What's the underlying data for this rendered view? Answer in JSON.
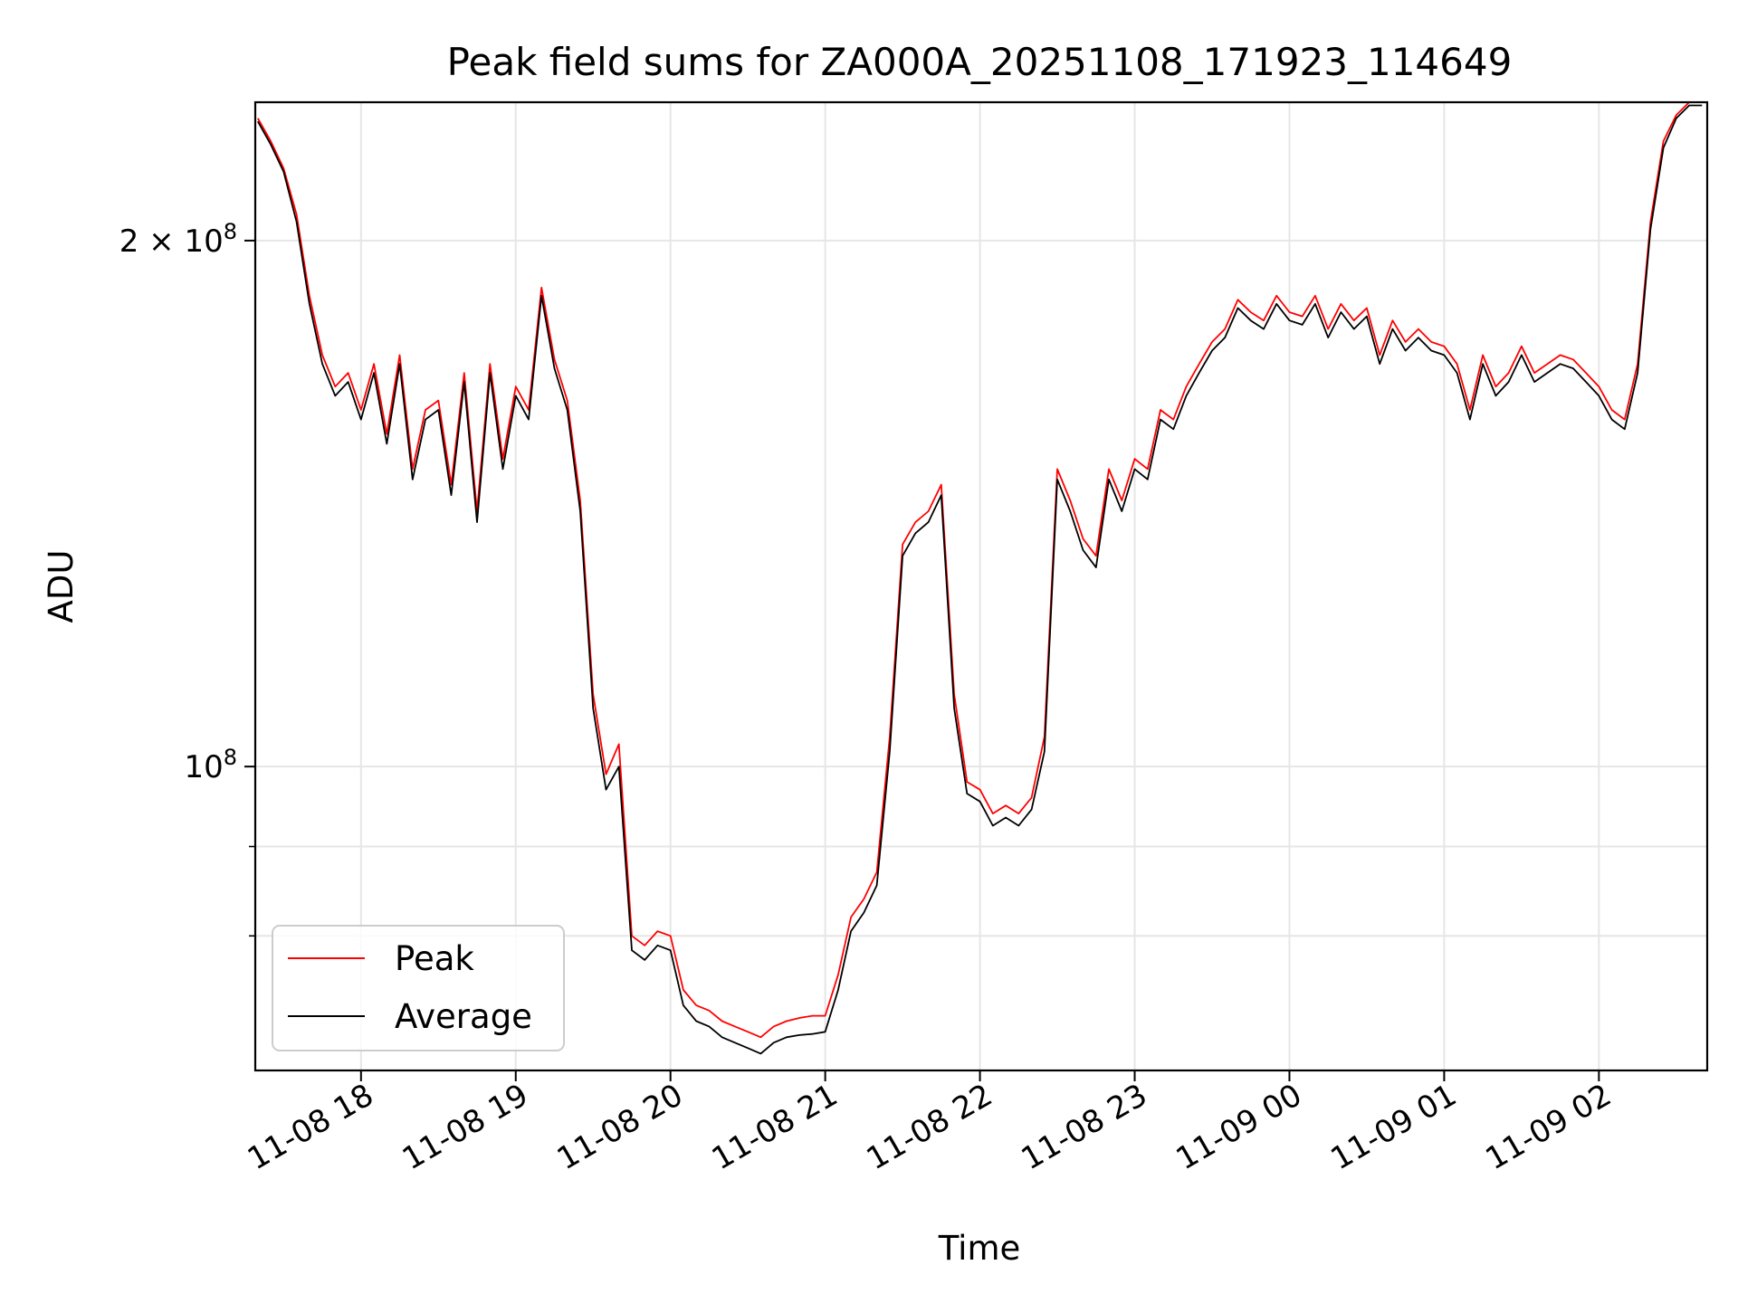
{
  "chart_data": {
    "type": "line",
    "title": "Peak field sums for ZA000A_20251108_171923_114649",
    "xlabel": "Time",
    "ylabel": "ADU",
    "yscale": "log",
    "xlim": [
      "2025-11-08 17:19",
      "2025-11-09 02:42"
    ],
    "ylim": [
      67000000,
      240000000
    ],
    "x_ticks": [
      "11-08 18",
      "11-08 19",
      "11-08 20",
      "11-08 21",
      "11-08 22",
      "11-08 23",
      "11-09 00",
      "11-09 01",
      "11-09 02"
    ],
    "y_tick_labels": [
      {
        "value": 100000000,
        "base": "10",
        "exp": "8",
        "prefix": ""
      },
      {
        "value": 200000000,
        "base": "10",
        "exp": "8",
        "prefix": "2 × "
      }
    ],
    "y_minor_gridlines": [
      80000000,
      90000000
    ],
    "grid": true,
    "legend_position": "lower-left",
    "series": [
      {
        "name": "Peak",
        "color": "#ff0000",
        "x": [
          "2025-11-08 17:20",
          "2025-11-08 17:25",
          "2025-11-08 17:30",
          "2025-11-08 17:35",
          "2025-11-08 17:40",
          "2025-11-08 17:45",
          "2025-11-08 17:50",
          "2025-11-08 17:55",
          "2025-11-08 18:00",
          "2025-11-08 18:05",
          "2025-11-08 18:10",
          "2025-11-08 18:15",
          "2025-11-08 18:20",
          "2025-11-08 18:25",
          "2025-11-08 18:30",
          "2025-11-08 18:35",
          "2025-11-08 18:40",
          "2025-11-08 18:45",
          "2025-11-08 18:50",
          "2025-11-08 18:55",
          "2025-11-08 19:00",
          "2025-11-08 19:05",
          "2025-11-08 19:10",
          "2025-11-08 19:15",
          "2025-11-08 19:20",
          "2025-11-08 19:25",
          "2025-11-08 19:30",
          "2025-11-08 19:35",
          "2025-11-08 19:40",
          "2025-11-08 19:45",
          "2025-11-08 19:50",
          "2025-11-08 19:55",
          "2025-11-08 20:00",
          "2025-11-08 20:05",
          "2025-11-08 20:10",
          "2025-11-08 20:15",
          "2025-11-08 20:20",
          "2025-11-08 20:25",
          "2025-11-08 20:30",
          "2025-11-08 20:35",
          "2025-11-08 20:40",
          "2025-11-08 20:45",
          "2025-11-08 20:50",
          "2025-11-08 20:55",
          "2025-11-08 21:00",
          "2025-11-08 21:05",
          "2025-11-08 21:10",
          "2025-11-08 21:15",
          "2025-11-08 21:20",
          "2025-11-08 21:25",
          "2025-11-08 21:30",
          "2025-11-08 21:35",
          "2025-11-08 21:40",
          "2025-11-08 21:45",
          "2025-11-08 21:50",
          "2025-11-08 21:55",
          "2025-11-08 22:00",
          "2025-11-08 22:05",
          "2025-11-08 22:10",
          "2025-11-08 22:15",
          "2025-11-08 22:20",
          "2025-11-08 22:25",
          "2025-11-08 22:30",
          "2025-11-08 22:35",
          "2025-11-08 22:40",
          "2025-11-08 22:45",
          "2025-11-08 22:50",
          "2025-11-08 22:55",
          "2025-11-08 23:00",
          "2025-11-08 23:05",
          "2025-11-08 23:10",
          "2025-11-08 23:15",
          "2025-11-08 23:20",
          "2025-11-08 23:25",
          "2025-11-08 23:30",
          "2025-11-08 23:35",
          "2025-11-08 23:40",
          "2025-11-08 23:45",
          "2025-11-08 23:50",
          "2025-11-08 23:55",
          "2025-11-09 00:00",
          "2025-11-09 00:05",
          "2025-11-09 00:10",
          "2025-11-09 00:15",
          "2025-11-09 00:20",
          "2025-11-09 00:25",
          "2025-11-09 00:30",
          "2025-11-09 00:35",
          "2025-11-09 00:40",
          "2025-11-09 00:45",
          "2025-11-09 00:50",
          "2025-11-09 00:55",
          "2025-11-09 01:00",
          "2025-11-09 01:05",
          "2025-11-09 01:10",
          "2025-11-09 01:15",
          "2025-11-09 01:20",
          "2025-11-09 01:25",
          "2025-11-09 01:30",
          "2025-11-09 01:35",
          "2025-11-09 01:40",
          "2025-11-09 01:45",
          "2025-11-09 01:50",
          "2025-11-09 01:55",
          "2025-11-09 02:00",
          "2025-11-09 02:05",
          "2025-11-09 02:10",
          "2025-11-09 02:15",
          "2025-11-09 02:20",
          "2025-11-09 02:25",
          "2025-11-09 02:30",
          "2025-11-09 02:35",
          "2025-11-09 02:40"
        ],
        "y": [
          235000000,
          228000000,
          220000000,
          207000000,
          186000000,
          172000000,
          165000000,
          168000000,
          160000000,
          170000000,
          155000000,
          172000000,
          148000000,
          160000000,
          162000000,
          145000000,
          168000000,
          140000000,
          170000000,
          150000000,
          165000000,
          160000000,
          188000000,
          171000000,
          162000000,
          142000000,
          110000000,
          99000000,
          103000000,
          80000000,
          79000000,
          80500000,
          80000000,
          74500000,
          73000000,
          72500000,
          71500000,
          71000000,
          70500000,
          70000000,
          71000000,
          71500000,
          71800000,
          72000000,
          72000000,
          76000000,
          82000000,
          84000000,
          87000000,
          104000000,
          134000000,
          138000000,
          140000000,
          145000000,
          110000000,
          98000000,
          97000000,
          94000000,
          95000000,
          94000000,
          96000000,
          104000000,
          148000000,
          142000000,
          135000000,
          132000000,
          148000000,
          142000000,
          150000000,
          148000000,
          160000000,
          158000000,
          165000000,
          170000000,
          175000000,
          178000000,
          185000000,
          182000000,
          180000000,
          186000000,
          182000000,
          181000000,
          186000000,
          178000000,
          184000000,
          180000000,
          183000000,
          172000000,
          180000000,
          175000000,
          178000000,
          175000000,
          174000000,
          170000000,
          160000000,
          172000000,
          165000000,
          168000000,
          174000000,
          168000000,
          170000000,
          172000000,
          171000000,
          168000000,
          165000000,
          160000000,
          158000000,
          170000000,
          205000000,
          228000000,
          236000000,
          240000000,
          240000000
        ]
      },
      {
        "name": "Average",
        "color": "#000000",
        "x": [
          "2025-11-08 17:20",
          "2025-11-08 17:25",
          "2025-11-08 17:30",
          "2025-11-08 17:35",
          "2025-11-08 17:40",
          "2025-11-08 17:45",
          "2025-11-08 17:50",
          "2025-11-08 17:55",
          "2025-11-08 18:00",
          "2025-11-08 18:05",
          "2025-11-08 18:10",
          "2025-11-08 18:15",
          "2025-11-08 18:20",
          "2025-11-08 18:25",
          "2025-11-08 18:30",
          "2025-11-08 18:35",
          "2025-11-08 18:40",
          "2025-11-08 18:45",
          "2025-11-08 18:50",
          "2025-11-08 18:55",
          "2025-11-08 19:00",
          "2025-11-08 19:05",
          "2025-11-08 19:10",
          "2025-11-08 19:15",
          "2025-11-08 19:20",
          "2025-11-08 19:25",
          "2025-11-08 19:30",
          "2025-11-08 19:35",
          "2025-11-08 19:40",
          "2025-11-08 19:45",
          "2025-11-08 19:50",
          "2025-11-08 19:55",
          "2025-11-08 20:00",
          "2025-11-08 20:05",
          "2025-11-08 20:10",
          "2025-11-08 20:15",
          "2025-11-08 20:20",
          "2025-11-08 20:25",
          "2025-11-08 20:30",
          "2025-11-08 20:35",
          "2025-11-08 20:40",
          "2025-11-08 20:45",
          "2025-11-08 20:50",
          "2025-11-08 20:55",
          "2025-11-08 21:00",
          "2025-11-08 21:05",
          "2025-11-08 21:10",
          "2025-11-08 21:15",
          "2025-11-08 21:20",
          "2025-11-08 21:25",
          "2025-11-08 21:30",
          "2025-11-08 21:35",
          "2025-11-08 21:40",
          "2025-11-08 21:45",
          "2025-11-08 21:50",
          "2025-11-08 21:55",
          "2025-11-08 22:00",
          "2025-11-08 22:05",
          "2025-11-08 22:10",
          "2025-11-08 22:15",
          "2025-11-08 22:20",
          "2025-11-08 22:25",
          "2025-11-08 22:30",
          "2025-11-08 22:35",
          "2025-11-08 22:40",
          "2025-11-08 22:45",
          "2025-11-08 22:50",
          "2025-11-08 22:55",
          "2025-11-08 23:00",
          "2025-11-08 23:05",
          "2025-11-08 23:10",
          "2025-11-08 23:15",
          "2025-11-08 23:20",
          "2025-11-08 23:25",
          "2025-11-08 23:30",
          "2025-11-08 23:35",
          "2025-11-08 23:40",
          "2025-11-08 23:45",
          "2025-11-08 23:50",
          "2025-11-08 23:55",
          "2025-11-09 00:00",
          "2025-11-09 00:05",
          "2025-11-09 00:10",
          "2025-11-09 00:15",
          "2025-11-09 00:20",
          "2025-11-09 00:25",
          "2025-11-09 00:30",
          "2025-11-09 00:35",
          "2025-11-09 00:40",
          "2025-11-09 00:45",
          "2025-11-09 00:50",
          "2025-11-09 00:55",
          "2025-11-09 01:00",
          "2025-11-09 01:05",
          "2025-11-09 01:10",
          "2025-11-09 01:15",
          "2025-11-09 01:20",
          "2025-11-09 01:25",
          "2025-11-09 01:30",
          "2025-11-09 01:35",
          "2025-11-09 01:40",
          "2025-11-09 01:45",
          "2025-11-09 01:50",
          "2025-11-09 01:55",
          "2025-11-09 02:00",
          "2025-11-09 02:05",
          "2025-11-09 02:10",
          "2025-11-09 02:15",
          "2025-11-09 02:20",
          "2025-11-09 02:25",
          "2025-11-09 02:30",
          "2025-11-09 02:35",
          "2025-11-09 02:40"
        ],
        "y": [
          234000000,
          227000000,
          219000000,
          205000000,
          184000000,
          170000000,
          163000000,
          166000000,
          158000000,
          168000000,
          153000000,
          170000000,
          146000000,
          158000000,
          160000000,
          143000000,
          166000000,
          138000000,
          168000000,
          148000000,
          163000000,
          158000000,
          186000000,
          169000000,
          160000000,
          140000000,
          108000000,
          97000000,
          100000000,
          78500000,
          77500000,
          79000000,
          78500000,
          73000000,
          71500000,
          71000000,
          70000000,
          69500000,
          69000000,
          68500000,
          69500000,
          70000000,
          70200000,
          70300000,
          70500000,
          74500000,
          80500000,
          82500000,
          85500000,
          102000000,
          132000000,
          136000000,
          138000000,
          143000000,
          108000000,
          96500000,
          95500000,
          92500000,
          93500000,
          92500000,
          94500000,
          102000000,
          146000000,
          140000000,
          133000000,
          130000000,
          146000000,
          140000000,
          148000000,
          146000000,
          158000000,
          156000000,
          163000000,
          168000000,
          173000000,
          176000000,
          183000000,
          180000000,
          178000000,
          184000000,
          180000000,
          179000000,
          184000000,
          176000000,
          182000000,
          178000000,
          181000000,
          170000000,
          178000000,
          173000000,
          176000000,
          173000000,
          172000000,
          168000000,
          158000000,
          170000000,
          163000000,
          166000000,
          172000000,
          166000000,
          168000000,
          170000000,
          169000000,
          166000000,
          163000000,
          158000000,
          156000000,
          168000000,
          203000000,
          226000000,
          235000000,
          239000000,
          239000000
        ]
      }
    ]
  }
}
